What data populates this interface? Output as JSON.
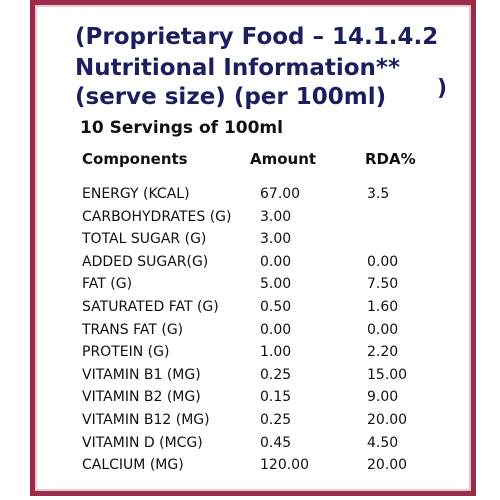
{
  "header": {
    "title_lines": [
      "(Proprietary Food – 14.1.4.2",
      "Nutritional Information**",
      "(serve size) (per 100ml)"
    ],
    "closing": ")",
    "servings": "10 Servings of 100ml"
  },
  "table": {
    "columns": [
      "Components",
      "Amount",
      "RDA%"
    ],
    "rows": [
      {
        "component": "ENERGY (KCAL)",
        "amount": "67.00",
        "rda": "3.5"
      },
      {
        "component": "CARBOHYDRATES (G)",
        "amount": "3.00"
      },
      {
        "component": "TOTAL SUGAR (G)",
        "amount": "3.00"
      },
      {
        "component": "ADDED SUGAR(G)",
        "amount": "0.00",
        "rda": "0.00"
      },
      {
        "component": "FAT (G)",
        "amount": "5.00",
        "rda": "7.50"
      },
      {
        "component": "SATURATED FAT (G)",
        "amount": "0.50",
        "rda": "1.60"
      },
      {
        "component": "TRANS FAT (G)",
        "amount": "0.00",
        "rda": "0.00"
      },
      {
        "component": "PROTEIN (G)",
        "amount": "1.00",
        "rda": "2.20"
      },
      {
        "component": "VITAMIN B1 (MG)",
        "amount": "0.25",
        "rda": "15.00"
      },
      {
        "component": "VITAMIN B2 (MG)",
        "amount": "0.15",
        "rda": "9.00"
      },
      {
        "component": "VITAMIN B12 (MG)",
        "amount": "0.25",
        "rda": "20.00"
      },
      {
        "component": "VITAMIN D (MCG)",
        "amount": "0.45",
        "rda": "4.50"
      },
      {
        "component": "CALCIUM (MG)",
        "amount": "120.00",
        "rda": "20.00"
      }
    ]
  }
}
